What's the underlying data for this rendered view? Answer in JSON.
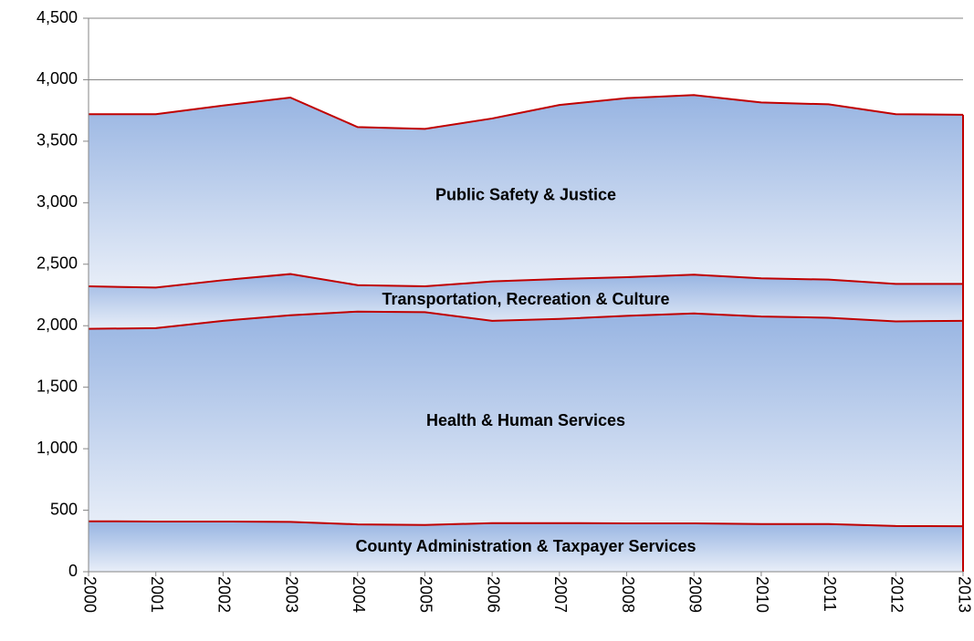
{
  "chart_data": {
    "type": "stacked-area",
    "categories": [
      "2000",
      "2001",
      "2002",
      "2003",
      "2004",
      "2005",
      "2006",
      "2007",
      "2008",
      "2009",
      "2010",
      "2011",
      "2012",
      "2013"
    ],
    "series": [
      {
        "name": "County Administration & Taxpayer Services",
        "color": "#c00000",
        "values": [
          410,
          408,
          408,
          405,
          385,
          380,
          395,
          395,
          393,
          393,
          387,
          387,
          372,
          370
        ]
      },
      {
        "name": "Health & Human Services",
        "color": "#c00000",
        "values": [
          1565,
          1572,
          1632,
          1680,
          1730,
          1730,
          1645,
          1660,
          1687,
          1707,
          1688,
          1678,
          1663,
          1670
        ]
      },
      {
        "name": "Transportation, Recreation & Culture",
        "color": "#c00000",
        "values": [
          345,
          330,
          330,
          335,
          215,
          210,
          320,
          325,
          315,
          315,
          310,
          310,
          305,
          300
        ]
      },
      {
        "name": "Public Safety & Justice",
        "color": "#c00000",
        "values": [
          1400,
          1410,
          1420,
          1435,
          1285,
          1280,
          1325,
          1415,
          1455,
          1460,
          1430,
          1425,
          1380,
          1375
        ]
      }
    ],
    "ylim": [
      0,
      4500
    ],
    "yticks": [
      0,
      500,
      {
        "value": 1000,
        "label": "1,000"
      },
      {
        "value": 1500,
        "label": "1,500"
      },
      {
        "value": 2000,
        "label": "2,000"
      },
      {
        "value": 2500,
        "label": "2,500"
      },
      {
        "value": 3000,
        "label": "3,000"
      },
      {
        "value": 3500,
        "label": "3,500"
      },
      {
        "value": 4000,
        "label": "4,000"
      },
      {
        "value": 4500,
        "label": "4,500"
      }
    ],
    "grid": true
  }
}
